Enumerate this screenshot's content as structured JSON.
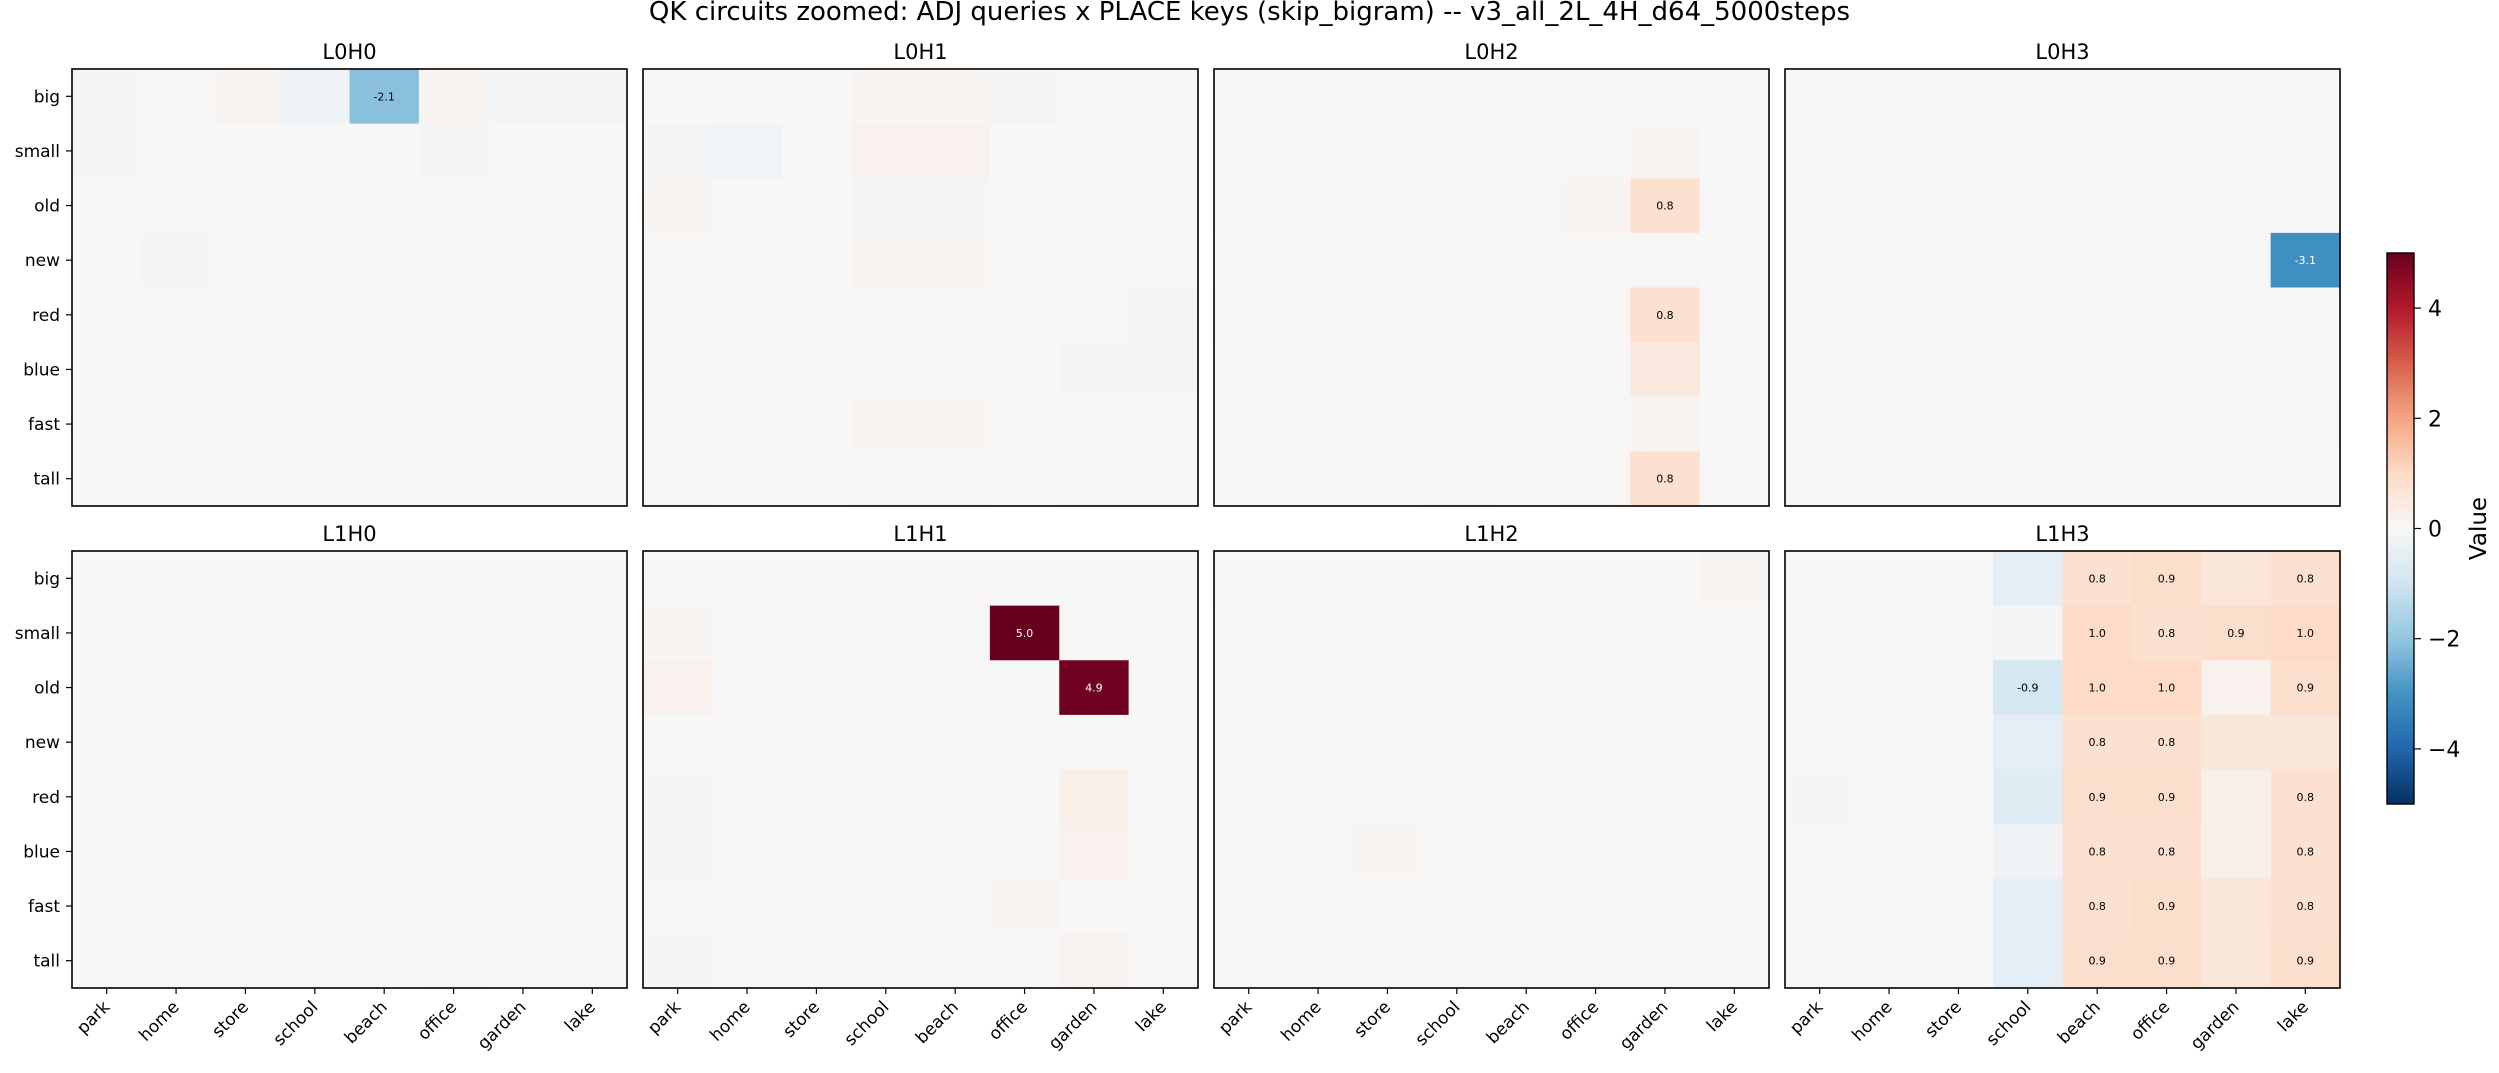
{
  "chart_data": {
    "type": "heatmap",
    "title": "QK circuits zoomed: ADJ queries x PLACE keys (skip_bigram) -- v3_all_2L_4H_d64_5000steps",
    "rows": [
      "big",
      "small",
      "old",
      "new",
      "red",
      "blue",
      "fast",
      "tall"
    ],
    "cols": [
      "park",
      "home",
      "store",
      "school",
      "beach",
      "office",
      "garden",
      "lake"
    ],
    "colorbar": {
      "label": "Value",
      "vmin": -5,
      "vmax": 5,
      "ticks": [
        -4,
        -2,
        0,
        2,
        4
      ],
      "colormap": "RdBu_r"
    },
    "annotation_threshold": 0.75,
    "panels": [
      {
        "name": "L0H0",
        "values": [
          [
            -0.1,
            0.0,
            0.1,
            -0.2,
            -2.1,
            0.1,
            -0.1,
            -0.1
          ],
          [
            -0.1,
            0.0,
            0.0,
            0.0,
            0.0,
            -0.1,
            0.0,
            0.0
          ],
          [
            0.0,
            0.0,
            0.0,
            0.0,
            0.0,
            0.0,
            0.0,
            0.0
          ],
          [
            0.0,
            -0.1,
            0.05,
            0.05,
            0.0,
            -0.05,
            0.0,
            0.0
          ],
          [
            0.0,
            0.0,
            0.0,
            0.05,
            0.0,
            -0.05,
            0.0,
            0.0
          ],
          [
            0.0,
            0.0,
            0.0,
            0.0,
            0.0,
            0.0,
            0.0,
            0.0
          ],
          [
            0.0,
            0.0,
            0.05,
            0.0,
            0.0,
            -0.05,
            0.0,
            0.0
          ],
          [
            0.0,
            0.0,
            0.0,
            0.0,
            0.0,
            0.0,
            0.0,
            0.0
          ]
        ]
      },
      {
        "name": "L0H1",
        "values": [
          [
            0.0,
            0.0,
            0.0,
            0.1,
            0.1,
            -0.1,
            0.05,
            0.05
          ],
          [
            -0.1,
            -0.15,
            0.0,
            0.2,
            0.2,
            0.0,
            0.0,
            0.0
          ],
          [
            0.1,
            0.0,
            0.0,
            -0.1,
            -0.1,
            0.0,
            0.0,
            0.0
          ],
          [
            0.0,
            0.0,
            0.0,
            0.1,
            0.1,
            0.0,
            0.0,
            0.0
          ],
          [
            0.0,
            0.0,
            0.0,
            -0.05,
            -0.05,
            0.0,
            0.0,
            -0.1
          ],
          [
            0.0,
            0.0,
            0.05,
            -0.05,
            -0.05,
            0.0,
            -0.1,
            -0.1
          ],
          [
            -0.05,
            0.0,
            0.0,
            0.1,
            0.1,
            0.0,
            0.0,
            0.0
          ],
          [
            -0.05,
            0.0,
            0.0,
            -0.05,
            -0.05,
            0.0,
            -0.05,
            -0.05
          ]
        ]
      },
      {
        "name": "L0H2",
        "values": [
          [
            0.0,
            0.0,
            0.0,
            0.0,
            0.0,
            0.0,
            -0.05,
            0.0
          ],
          [
            0.05,
            0.0,
            0.0,
            0.0,
            0.0,
            -0.05,
            0.1,
            0.0
          ],
          [
            -0.05,
            0.0,
            0.0,
            0.0,
            0.0,
            0.1,
            0.8,
            0.0
          ],
          [
            0.0,
            0.0,
            0.0,
            0.0,
            0.0,
            0.0,
            0.05,
            0.0
          ],
          [
            0.05,
            0.0,
            0.0,
            0.05,
            0.0,
            0.05,
            0.8,
            0.0
          ],
          [
            0.0,
            0.0,
            -0.05,
            0.0,
            0.0,
            0.0,
            0.5,
            0.0
          ],
          [
            0.0,
            0.0,
            0.0,
            0.0,
            0.0,
            -0.05,
            0.1,
            0.0
          ],
          [
            0.0,
            0.0,
            0.0,
            0.05,
            0.0,
            0.05,
            0.8,
            0.0
          ]
        ]
      },
      {
        "name": "L0H3",
        "values": [
          [
            0.0,
            0.0,
            0.0,
            0.0,
            0.0,
            0.0,
            0.0,
            0.0
          ],
          [
            0.0,
            0.0,
            0.0,
            0.0,
            0.0,
            0.0,
            0.0,
            0.0
          ],
          [
            0.0,
            0.0,
            0.0,
            0.0,
            0.0,
            0.0,
            0.0,
            0.0
          ],
          [
            0.0,
            0.0,
            -0.05,
            0.0,
            0.05,
            -0.05,
            -0.05,
            -3.1
          ],
          [
            0.0,
            0.0,
            0.0,
            0.0,
            0.0,
            0.0,
            0.0,
            0.0
          ],
          [
            0.0,
            0.0,
            0.0,
            0.0,
            0.0,
            0.0,
            0.0,
            0.0
          ],
          [
            0.0,
            0.0,
            0.0,
            0.0,
            0.0,
            0.0,
            0.0,
            -0.05
          ],
          [
            0.0,
            0.0,
            0.0,
            0.0,
            0.0,
            0.0,
            0.0,
            0.0
          ]
        ]
      },
      {
        "name": "L1H0",
        "values": [
          [
            0.0,
            0.0,
            0.0,
            0.0,
            0.0,
            0.0,
            0.0,
            0.0
          ],
          [
            0.0,
            0.0,
            0.0,
            0.0,
            0.0,
            0.0,
            0.0,
            0.0
          ],
          [
            0.0,
            0.0,
            0.0,
            0.0,
            0.0,
            0.05,
            0.0,
            0.0
          ],
          [
            0.0,
            0.0,
            0.0,
            0.0,
            0.0,
            0.0,
            0.0,
            0.0
          ],
          [
            0.0,
            0.0,
            0.0,
            0.0,
            0.0,
            0.0,
            0.0,
            0.0
          ],
          [
            0.0,
            0.0,
            0.0,
            0.0,
            0.0,
            0.05,
            0.0,
            0.0
          ],
          [
            0.0,
            0.0,
            0.0,
            0.0,
            0.0,
            0.0,
            0.0,
            0.0
          ],
          [
            0.0,
            0.0,
            0.0,
            0.0,
            0.0,
            0.05,
            0.0,
            0.0
          ]
        ]
      },
      {
        "name": "L1H1",
        "values": [
          [
            0.0,
            0.0,
            0.0,
            0.0,
            0.05,
            0.0,
            -0.05,
            0.0
          ],
          [
            0.1,
            0.0,
            -0.05,
            0.05,
            -0.05,
            5.0,
            0.05,
            0.0
          ],
          [
            0.2,
            0.0,
            0.0,
            0.0,
            0.0,
            -0.05,
            4.9,
            0.0
          ],
          [
            0.0,
            0.0,
            0.0,
            0.0,
            0.0,
            0.05,
            0.0,
            0.0
          ],
          [
            -0.1,
            0.0,
            0.0,
            0.0,
            0.0,
            0.0,
            0.3,
            0.0
          ],
          [
            -0.1,
            0.0,
            0.0,
            0.0,
            0.0,
            0.0,
            0.2,
            0.0
          ],
          [
            0.0,
            0.0,
            0.0,
            0.0,
            0.0,
            0.1,
            0.0,
            0.0
          ],
          [
            -0.1,
            0.0,
            0.0,
            0.0,
            0.0,
            0.0,
            0.15,
            0.0
          ]
        ]
      },
      {
        "name": "L1H2",
        "values": [
          [
            -0.05,
            0.0,
            0.05,
            0.0,
            0.0,
            0.0,
            0.0,
            0.1
          ],
          [
            0.0,
            0.0,
            0.05,
            0.0,
            0.0,
            0.0,
            0.0,
            0.0
          ],
          [
            0.0,
            0.0,
            0.0,
            0.0,
            0.0,
            0.0,
            0.0,
            0.0
          ],
          [
            0.0,
            0.0,
            0.0,
            0.0,
            0.0,
            0.0,
            0.0,
            0.0
          ],
          [
            0.0,
            0.0,
            0.0,
            0.0,
            0.0,
            0.0,
            0.0,
            0.0
          ],
          [
            0.0,
            0.0,
            0.1,
            0.0,
            0.0,
            0.0,
            0.0,
            0.0
          ],
          [
            0.0,
            0.0,
            0.0,
            0.0,
            0.0,
            0.0,
            0.0,
            0.0
          ],
          [
            0.0,
            0.0,
            0.0,
            0.0,
            0.0,
            0.0,
            0.0,
            0.0
          ]
        ]
      },
      {
        "name": "L1H3",
        "values": [
          [
            0.0,
            0.05,
            0.0,
            -0.5,
            0.8,
            0.9,
            0.6,
            0.8
          ],
          [
            0.0,
            0.0,
            0.0,
            -0.1,
            1.0,
            0.8,
            0.9,
            1.0
          ],
          [
            0.0,
            0.05,
            0.0,
            -0.9,
            1.0,
            1.0,
            0.2,
            0.9
          ],
          [
            0.0,
            0.0,
            0.0,
            -0.5,
            0.8,
            0.8,
            0.6,
            0.6
          ],
          [
            -0.1,
            0.0,
            0.0,
            -0.6,
            0.9,
            0.9,
            0.3,
            0.8
          ],
          [
            0.0,
            0.0,
            0.0,
            -0.2,
            0.8,
            0.8,
            0.3,
            0.8
          ],
          [
            0.0,
            0.0,
            0.0,
            -0.5,
            0.8,
            0.9,
            0.6,
            0.8
          ],
          [
            0.0,
            0.0,
            0.0,
            -0.5,
            0.9,
            0.9,
            0.6,
            0.9
          ]
        ]
      }
    ]
  }
}
